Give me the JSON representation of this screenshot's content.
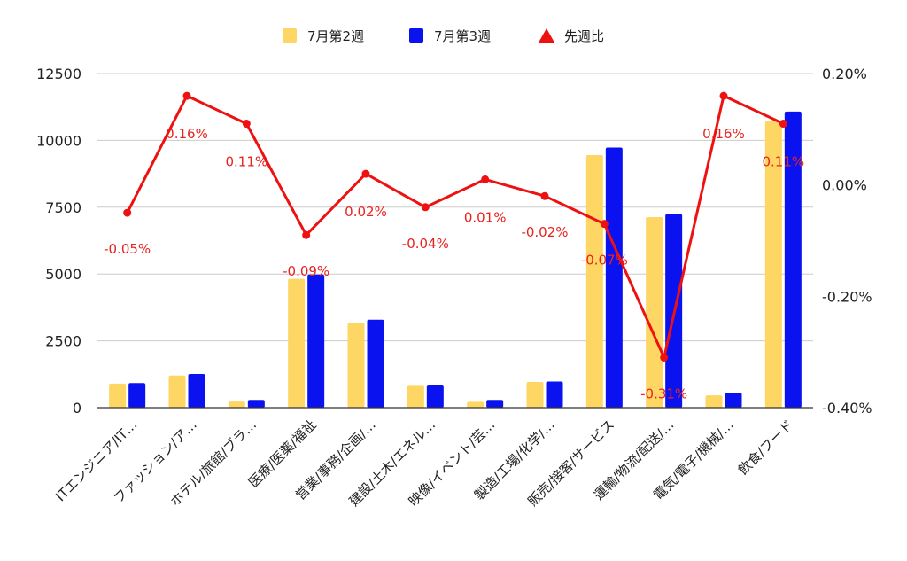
{
  "chart_data": {
    "type": "bar",
    "categories": [
      "ITエンジニア/IT…",
      "ファッション/ア…",
      "ホテル/旅館/ブラ…",
      "医療/医薬/福祉",
      "営業/事務/企画/…",
      "建設/土木/エネル…",
      "映像/イベント/芸…",
      "製造/工場/化学/…",
      "販売/接客/サービス",
      "運輸/物流/配送/…",
      "電気/電子/機械/…",
      "飲食/フード"
    ],
    "series": [
      {
        "name": "7月第2週",
        "type": "bar",
        "axis": "left",
        "color": "#fdd663",
        "values": [
          900,
          1200,
          230,
          4820,
          3170,
          850,
          220,
          960,
          9450,
          7130,
          460,
          10730
        ]
      },
      {
        "name": "7月第3週",
        "type": "bar",
        "axis": "left",
        "color": "#0b12f0",
        "values": [
          920,
          1260,
          290,
          4980,
          3290,
          860,
          290,
          980,
          9730,
          7240,
          560,
          11080
        ]
      },
      {
        "name": "先週比",
        "type": "line",
        "axis": "right",
        "color": "#ee1111",
        "values": [
          -0.0005,
          0.0016,
          0.0011,
          -0.0009,
          0.0002,
          -0.0004,
          0.0001,
          -0.0002,
          -0.0007,
          -0.0031,
          0.0016,
          0.0011
        ],
        "labels": [
          "-0.05%",
          "0.16%",
          "0.11%",
          "-0.09%",
          "0.02%",
          "-0.04%",
          "0.01%",
          "-0.02%",
          "-0.07%",
          "-0.31%",
          "0.16%",
          "0.11%"
        ]
      }
    ],
    "y_left": {
      "min": 0,
      "max": 12500,
      "ticks": [
        0,
        2500,
        5000,
        7500,
        10000,
        12500
      ],
      "tick_labels": [
        "0",
        "2500",
        "5000",
        "7500",
        "10000",
        "12500"
      ]
    },
    "y_right": {
      "min": -0.004,
      "max": 0.002,
      "ticks": [
        -0.004,
        -0.002,
        0,
        0.002
      ],
      "tick_labels": [
        "-0.40%",
        "-0.20%",
        "0.00%",
        "0.20%"
      ]
    },
    "legend": "top-center",
    "grid": true
  }
}
